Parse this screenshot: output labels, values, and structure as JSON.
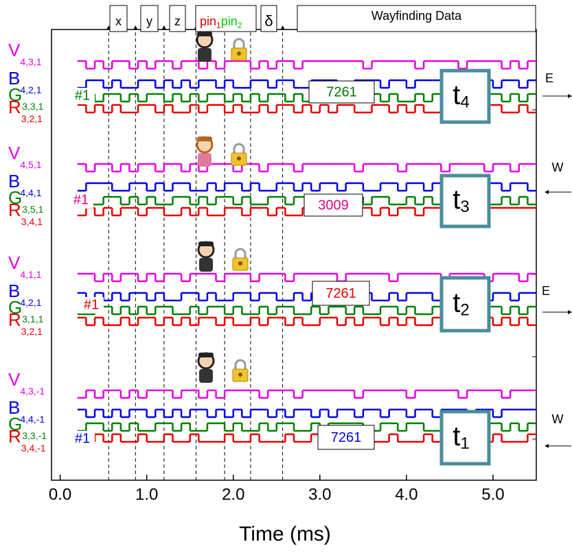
{
  "chart_data": {
    "type": "step",
    "xlabel": "Time (ms)",
    "xlim": [
      -0.1,
      5.5
    ],
    "xticks": [
      {
        "value": 0,
        "label": "0.0"
      },
      {
        "value": 1,
        "label": "1.0"
      },
      {
        "value": 2,
        "label": "2.0"
      },
      {
        "value": 3,
        "label": "3.0"
      },
      {
        "value": 4,
        "label": "4.0"
      },
      {
        "value": 5,
        "label": "5.0"
      }
    ],
    "dividers": [
      0.56,
      0.87,
      1.2,
      1.57,
      1.9,
      2.2,
      2.57
    ],
    "fields": [
      {
        "text": "x"
      },
      {
        "text": "y"
      },
      {
        "text": "z"
      },
      {
        "parts": [
          {
            "text": "pin",
            "sub": "1",
            "color": "#e00000"
          },
          {
            "text": "pin",
            "sub": "2",
            "color": "#00cc00"
          }
        ]
      },
      {
        "text": "δ"
      },
      {
        "text": "Wayfinding Data"
      }
    ],
    "x": [
      0.2,
      0.3,
      0.4,
      0.5,
      0.6,
      0.7,
      0.8,
      0.9,
      1.0,
      1.1,
      1.2,
      1.3,
      1.4,
      1.5,
      1.6,
      1.7,
      1.8,
      1.9,
      2.0,
      2.1,
      2.2,
      2.3,
      2.4,
      2.5,
      2.6,
      2.7,
      2.8,
      2.9,
      3.0,
      3.1,
      3.2,
      3.3,
      3.4,
      3.5,
      3.6,
      3.7,
      3.8,
      3.9,
      4.0,
      4.1,
      4.2,
      4.3,
      4.4,
      4.5,
      4.6,
      4.7,
      4.8,
      4.9,
      5.0,
      5.1,
      5.2,
      5.3,
      5.4
    ],
    "panels": [
      {
        "name": "t",
        "sub": "4",
        "code": "7261",
        "code_color": "#007700",
        "tag": "#1",
        "tag_color": "#008000",
        "direction": "E",
        "series": [
          {
            "name": "V",
            "subscript": "4,3,1",
            "color": "#e600e6",
            "values": [
              1,
              0,
              1,
              0,
              1,
              1,
              0,
              1,
              0,
              1,
              1,
              0,
              1,
              1,
              0,
              1,
              0,
              1,
              1,
              1,
              0,
              1,
              0,
              1,
              1,
              0,
              1,
              1,
              1,
              1,
              1,
              1,
              1,
              0,
              1,
              1,
              1,
              1,
              1,
              0,
              1,
              1,
              1,
              1,
              0,
              1,
              1,
              1,
              1,
              0,
              1,
              0,
              1
            ]
          },
          {
            "name": "B",
            "subscript": "4,2,1",
            "color": "#0000e6",
            "values": [
              0,
              1,
              1,
              0,
              1,
              0,
              0,
              1,
              1,
              0,
              1,
              0,
              1,
              0,
              1,
              1,
              0,
              1,
              0,
              0,
              1,
              1,
              0,
              1,
              1,
              0,
              0,
              1,
              1,
              1,
              0,
              0,
              1,
              1,
              1,
              0,
              1,
              1,
              0,
              1,
              1,
              1,
              0,
              0,
              1,
              1,
              0,
              1,
              0,
              1,
              1,
              0,
              1
            ]
          },
          {
            "name": "G",
            "subscript": "3,3,1",
            "color": "#008000",
            "values": [
              0,
              1,
              0,
              1,
              1,
              0,
              1,
              0,
              1,
              1,
              0,
              1,
              0,
              1,
              0,
              1,
              1,
              0,
              1,
              0,
              1,
              0,
              1,
              1,
              0,
              1,
              0,
              0,
              1,
              1,
              0,
              1,
              1,
              0,
              1,
              0,
              1,
              0,
              0,
              1,
              0,
              1,
              1,
              0,
              0,
              1,
              0,
              1,
              1,
              0,
              1,
              0,
              1
            ]
          },
          {
            "name": "R",
            "subscript": "3,2,1",
            "color": "#e60000",
            "values": [
              1,
              0,
              1,
              0,
              1,
              0,
              0,
              1,
              1,
              0,
              1,
              0,
              0,
              1,
              0,
              1,
              1,
              0,
              1,
              0,
              0,
              1,
              0,
              1,
              1,
              0,
              1,
              0,
              1,
              0,
              1,
              1,
              0,
              0,
              1,
              1,
              0,
              1,
              0,
              1,
              0,
              0,
              1,
              1,
              0,
              1,
              0,
              1,
              1,
              0,
              0,
              1,
              0
            ]
          }
        ]
      },
      {
        "name": "t",
        "sub": "3",
        "code": "3009",
        "code_color": "#e6007e",
        "tag": "#1",
        "tag_color": "#e6007e",
        "direction": "W",
        "series": [
          {
            "name": "V",
            "subscript": "4,5,1",
            "color": "#e600e6",
            "values": [
              1,
              0,
              1,
              1,
              0,
              1,
              0,
              1,
              1,
              0,
              1,
              1,
              0,
              1,
              0,
              1,
              1,
              1,
              0,
              1,
              1,
              0,
              1,
              1,
              1,
              0,
              1,
              1,
              1,
              1,
              1,
              1,
              0,
              1,
              1,
              1,
              1,
              0,
              1,
              1,
              1,
              1,
              0,
              1,
              1,
              1,
              1,
              0,
              1,
              1,
              0,
              1,
              1
            ]
          },
          {
            "name": "B",
            "subscript": "4,4,1",
            "color": "#0000e6",
            "values": [
              0,
              1,
              1,
              1,
              0,
              0,
              1,
              1,
              0,
              1,
              0,
              1,
              1,
              0,
              0,
              1,
              0,
              1,
              1,
              0,
              1,
              0,
              0,
              1,
              1,
              0,
              1,
              0,
              1,
              1,
              0,
              1,
              1,
              0,
              0,
              1,
              1,
              0,
              1,
              1,
              0,
              1,
              0,
              0,
              1,
              1,
              0,
              1,
              1,
              0,
              1,
              1,
              0
            ]
          },
          {
            "name": "G",
            "subscript": "3,5,1",
            "color": "#008000",
            "values": [
              1,
              0,
              0,
              1,
              1,
              0,
              1,
              0,
              1,
              0,
              0,
              1,
              1,
              0,
              1,
              0,
              1,
              1,
              0,
              1,
              0,
              0,
              1,
              1,
              0,
              1,
              1,
              0,
              0,
              1,
              1,
              0,
              1,
              0,
              1,
              1,
              0,
              0,
              1,
              0,
              1,
              0,
              0,
              1,
              1,
              0,
              1,
              0,
              0,
              1,
              0,
              1,
              0
            ]
          },
          {
            "name": "R",
            "subscript": "3,4,1",
            "color": "#e60000",
            "values": [
              0,
              1,
              0,
              1,
              0,
              1,
              1,
              0,
              1,
              1,
              0,
              0,
              1,
              0,
              1,
              0,
              0,
              1,
              1,
              0,
              1,
              1,
              0,
              1,
              0,
              0,
              1,
              1,
              0,
              1,
              0,
              0,
              1,
              1,
              0,
              1,
              0,
              1,
              1,
              0,
              1,
              1,
              0,
              0,
              1,
              1,
              1,
              1,
              1,
              1,
              1,
              1,
              1
            ]
          }
        ]
      },
      {
        "name": "t",
        "sub": "2",
        "code": "7261",
        "code_color": "#e60000",
        "tag": "#1",
        "tag_color": "#e60000",
        "direction": "E",
        "series": [
          {
            "name": "V",
            "subscript": "4,1,1",
            "color": "#e600e6",
            "values": [
              1,
              1,
              0,
              1,
              0,
              1,
              1,
              0,
              1,
              0,
              1,
              1,
              0,
              1,
              1,
              1,
              0,
              1,
              1,
              1,
              0,
              1,
              1,
              1,
              0,
              1,
              1,
              1,
              1,
              1,
              0,
              1,
              1,
              1,
              1,
              1,
              0,
              1,
              1,
              1,
              1,
              1,
              0,
              1,
              1,
              1,
              1,
              0,
              1,
              1,
              1,
              0,
              1
            ]
          },
          {
            "name": "B",
            "subscript": "4,2,1",
            "color": "#0000e6",
            "values": [
              1,
              0,
              1,
              0,
              1,
              0,
              1,
              1,
              0,
              1,
              0,
              0,
              1,
              1,
              0,
              1,
              0,
              0,
              1,
              1,
              0,
              1,
              1,
              0,
              0,
              1,
              0,
              1,
              1,
              0,
              1,
              0,
              1,
              1,
              0,
              0,
              1,
              0,
              1,
              1,
              1,
              0,
              1,
              0,
              0,
              1,
              1,
              0,
              1,
              1,
              0,
              1,
              1
            ]
          },
          {
            "name": "G",
            "subscript": "3,1,1",
            "color": "#008000",
            "values": [
              0,
              0,
              1,
              1,
              0,
              1,
              0,
              1,
              0,
              1,
              1,
              0,
              0,
              1,
              0,
              1,
              1,
              0,
              1,
              0,
              0,
              1,
              0,
              1,
              1,
              0,
              0,
              1,
              0,
              1,
              1,
              0,
              1,
              0,
              0,
              1,
              1,
              0,
              1,
              0,
              0,
              1,
              1,
              0,
              1,
              0,
              0,
              1,
              1,
              0,
              1,
              0,
              1
            ]
          },
          {
            "name": "R",
            "subscript": "3,2,1",
            "color": "#e60000",
            "values": [
              1,
              0,
              1,
              0,
              0,
              1,
              0,
              1,
              1,
              0,
              1,
              0,
              1,
              0,
              1,
              1,
              0,
              1,
              0,
              0,
              1,
              0,
              1,
              1,
              0,
              1,
              0,
              0,
              1,
              1,
              0,
              1,
              0,
              1,
              1,
              0,
              1,
              0,
              1,
              0,
              0,
              1,
              1,
              0,
              1,
              0,
              1,
              1,
              0,
              1,
              0,
              1,
              0
            ]
          }
        ]
      },
      {
        "name": "t",
        "sub": "1",
        "code": "7261",
        "code_color": "#0000e6",
        "tag": "#1",
        "tag_color": "#0000e6",
        "direction": "W",
        "series": [
          {
            "name": "V",
            "subscript": "4,3,-1",
            "color": "#e600e6",
            "values": [
              0,
              1,
              0,
              1,
              1,
              0,
              1,
              0,
              1,
              1,
              1,
              0,
              1,
              1,
              0,
              1,
              0,
              1,
              1,
              1,
              1,
              0,
              1,
              1,
              1,
              0,
              1,
              1,
              1,
              1,
              1,
              1,
              0,
              1,
              1,
              1,
              1,
              1,
              0,
              1,
              1,
              1,
              1,
              1,
              0,
              1,
              1,
              1,
              1,
              0,
              1,
              1,
              1
            ]
          },
          {
            "name": "B",
            "subscript": "4,4,-1",
            "color": "#0000e6",
            "values": [
              1,
              0,
              1,
              0,
              1,
              0,
              1,
              1,
              0,
              1,
              0,
              1,
              0,
              1,
              1,
              0,
              1,
              0,
              1,
              0,
              1,
              1,
              0,
              1,
              0,
              1,
              1,
              0,
              1,
              0,
              1,
              1,
              0,
              1,
              1,
              0,
              1,
              1,
              0,
              1,
              1,
              0,
              1,
              1,
              1,
              0,
              1,
              1,
              0,
              1,
              1,
              1,
              1
            ]
          },
          {
            "name": "G",
            "subscript": "3,3,-1",
            "color": "#008000",
            "values": [
              0,
              1,
              1,
              0,
              1,
              0,
              1,
              0,
              0,
              1,
              1,
              0,
              1,
              0,
              0,
              1,
              1,
              0,
              1,
              0,
              0,
              1,
              0,
              1,
              1,
              0,
              0,
              1,
              0,
              1,
              1,
              1,
              1,
              0,
              0,
              1,
              1,
              0,
              1,
              1,
              0,
              0,
              1,
              1,
              0,
              1,
              0,
              1,
              1,
              0,
              1,
              0,
              1
            ]
          },
          {
            "name": "R",
            "subscript": "3,4,-1",
            "color": "#e60000",
            "values": [
              0,
              0,
              1,
              0,
              1,
              0,
              0,
              1,
              0,
              0,
              1,
              0,
              0,
              1,
              0,
              0,
              0,
              1,
              0,
              0,
              1,
              0,
              0,
              0,
              1,
              0,
              0,
              1,
              0,
              0,
              0,
              1,
              0,
              0,
              0,
              0,
              1,
              0,
              0,
              0,
              1,
              0,
              0,
              0,
              0,
              1,
              0,
              0,
              1,
              0,
              0,
              0,
              1
            ]
          }
        ]
      }
    ]
  }
}
